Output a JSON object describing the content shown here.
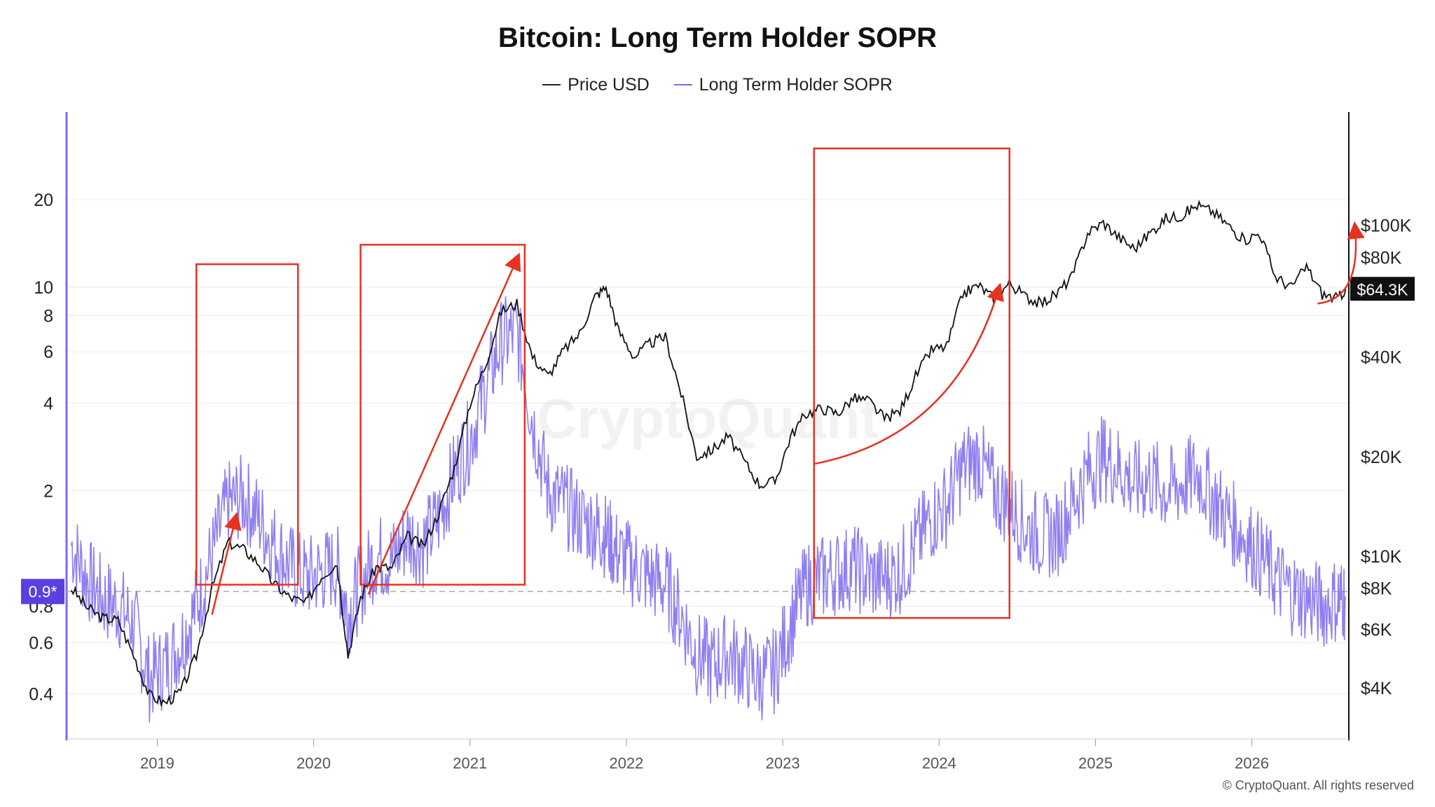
{
  "title": "Bitcoin: Long Term Holder SOPR",
  "legend": [
    {
      "label": "Price USD",
      "color": "#222222"
    },
    {
      "label": "Long Term Holder SOPR",
      "color": "#7b68ee"
    }
  ],
  "watermark": "CryptoQuant",
  "copyright": "© CryptoQuant. All rights reserved",
  "colors": {
    "price": "#111111",
    "sopr": "#7b68ee",
    "annotation": "#e8311f",
    "badge": "#5b3fe0"
  },
  "chart_data": {
    "type": "line",
    "title": "Bitcoin: Long Term Holder SOPR",
    "x_range": [
      2018.42,
      2026.62
    ],
    "x_ticks": [
      "2019",
      "2020",
      "2021",
      "2022",
      "2023",
      "2024",
      "2025",
      "2026"
    ],
    "left_axis": {
      "scale": "log",
      "range": [
        0.28,
        40
      ],
      "ticks": [
        "20",
        "10",
        "8",
        "6",
        "4",
        "2",
        "0.8",
        "0.6",
        "0.4"
      ]
    },
    "right_axis": {
      "scale": "log",
      "range": [
        2800,
        220000
      ],
      "ticks": [
        "$100K",
        "$80K",
        "$40K",
        "$20K",
        "$10K",
        "$8K",
        "$6K",
        "$4K"
      ]
    },
    "reference_line": {
      "value": 0.9,
      "label": "0.9*"
    },
    "current_price_label": "$64.3K",
    "series": [
      {
        "name": "Price USD",
        "axis": "right",
        "x": [
          2018.45,
          2018.55,
          2018.65,
          2018.75,
          2018.85,
          2018.95,
          2019.05,
          2019.15,
          2019.25,
          2019.35,
          2019.45,
          2019.55,
          2019.65,
          2019.75,
          2019.85,
          2019.95,
          2020.05,
          2020.15,
          2020.22,
          2020.3,
          2020.4,
          2020.5,
          2020.6,
          2020.7,
          2020.8,
          2020.9,
          2021.0,
          2021.1,
          2021.2,
          2021.3,
          2021.4,
          2021.5,
          2021.6,
          2021.7,
          2021.8,
          2021.87,
          2021.95,
          2022.05,
          2022.15,
          2022.25,
          2022.35,
          2022.45,
          2022.55,
          2022.65,
          2022.75,
          2022.85,
          2022.95,
          2023.05,
          2023.15,
          2023.25,
          2023.35,
          2023.45,
          2023.55,
          2023.65,
          2023.75,
          2023.85,
          2023.95,
          2024.05,
          2024.15,
          2024.25,
          2024.35,
          2024.45,
          2024.55,
          2024.65,
          2024.75,
          2024.85,
          2024.95,
          2025.05,
          2025.15,
          2025.25,
          2025.35,
          2025.45,
          2025.55,
          2025.65,
          2025.75,
          2025.85,
          2025.95,
          2026.05,
          2026.15,
          2026.25,
          2026.35,
          2026.45,
          2026.55,
          2026.6
        ],
        "values": [
          8000,
          7000,
          6500,
          6400,
          5000,
          3800,
          3600,
          3900,
          5000,
          8000,
          11000,
          10500,
          9500,
          8200,
          7500,
          7200,
          8700,
          9500,
          5000,
          7500,
          9300,
          9200,
          11500,
          10700,
          13500,
          18500,
          29000,
          38000,
          55000,
          58000,
          40000,
          35000,
          42000,
          47000,
          61000,
          65000,
          48000,
          40000,
          44000,
          46000,
          31000,
          20000,
          21000,
          23000,
          19500,
          16500,
          16800,
          23000,
          27000,
          28000,
          27000,
          30000,
          29500,
          26000,
          27500,
          35000,
          42000,
          43000,
          62000,
          66000,
          60000,
          67000,
          61000,
          58000,
          62000,
          70000,
          95000,
          102000,
          92000,
          85000,
          95000,
          105000,
          107000,
          115000,
          110000,
          100000,
          90000,
          95000,
          70000,
          65000,
          75000,
          62000,
          60000,
          64300
        ]
      },
      {
        "name": "Long Term Holder SOPR",
        "axis": "left",
        "x": [
          2018.45,
          2018.55,
          2018.65,
          2018.75,
          2018.85,
          2018.95,
          2019.05,
          2019.15,
          2019.25,
          2019.35,
          2019.45,
          2019.55,
          2019.65,
          2019.75,
          2019.85,
          2019.95,
          2020.05,
          2020.15,
          2020.22,
          2020.3,
          2020.4,
          2020.5,
          2020.6,
          2020.7,
          2020.8,
          2020.9,
          2021.0,
          2021.1,
          2021.2,
          2021.3,
          2021.4,
          2021.5,
          2021.6,
          2021.7,
          2021.8,
          2021.87,
          2021.95,
          2022.05,
          2022.15,
          2022.25,
          2022.35,
          2022.45,
          2022.55,
          2022.65,
          2022.75,
          2022.85,
          2022.95,
          2023.05,
          2023.15,
          2023.25,
          2023.35,
          2023.45,
          2023.55,
          2023.65,
          2023.75,
          2023.85,
          2023.95,
          2024.05,
          2024.15,
          2024.25,
          2024.35,
          2024.45,
          2024.55,
          2024.65,
          2024.75,
          2024.85,
          2024.95,
          2025.05,
          2025.15,
          2025.25,
          2025.35,
          2025.45,
          2025.55,
          2025.65,
          2025.75,
          2025.85,
          2025.95,
          2026.05,
          2026.15,
          2026.25,
          2026.35,
          2026.45,
          2026.55,
          2026.6
        ],
        "values": [
          1.3,
          1.0,
          0.85,
          0.8,
          0.7,
          0.45,
          0.5,
          0.6,
          0.8,
          1.2,
          1.8,
          1.9,
          1.6,
          1.3,
          1.1,
          1.0,
          1.05,
          1.1,
          0.75,
          0.95,
          1.2,
          1.15,
          1.4,
          1.3,
          1.6,
          2.3,
          3.0,
          4.5,
          6.5,
          7.0,
          3.5,
          2.0,
          1.8,
          1.6,
          1.5,
          1.4,
          1.2,
          1.1,
          1.0,
          0.95,
          0.75,
          0.55,
          0.5,
          0.55,
          0.5,
          0.45,
          0.48,
          0.7,
          0.95,
          1.0,
          1.05,
          1.1,
          1.0,
          1.0,
          1.05,
          1.3,
          1.6,
          1.8,
          2.4,
          2.6,
          2.0,
          1.8,
          1.5,
          1.4,
          1.4,
          1.8,
          2.3,
          2.6,
          2.4,
          2.1,
          2.2,
          2.0,
          2.1,
          2.3,
          1.9,
          1.6,
          1.4,
          1.2,
          1.0,
          0.9,
          0.85,
          0.8,
          0.85,
          0.85
        ]
      }
    ],
    "grid": "horizontal"
  }
}
